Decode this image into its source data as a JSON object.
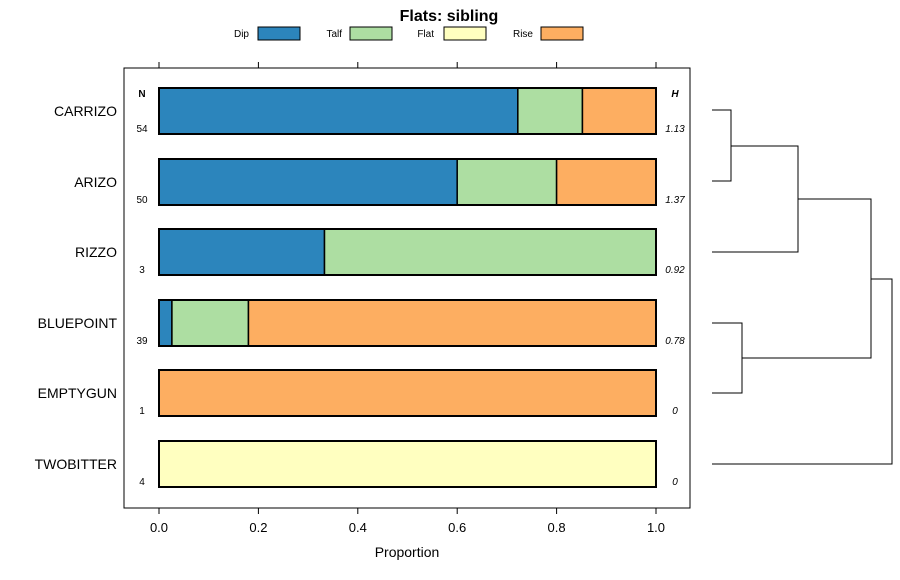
{
  "chart_data": {
    "type": "bar",
    "orientation": "horizontal",
    "stacked": true,
    "title": "Flats: sibling",
    "xlabel": "Proportion",
    "ylabel": "",
    "xlim": [
      0,
      1
    ],
    "x_ticks": [
      0,
      0.2,
      0.4,
      0.6,
      0.8,
      1
    ],
    "x_tick_labels": [
      "0.0",
      "0.2",
      "0.4",
      "0.6",
      "0.8",
      "1.0"
    ],
    "legend_position": "top",
    "categories": [
      "CARRIZO",
      "ARIZO",
      "RIZZO",
      "BLUEPOINT",
      "EMPTYGUN",
      "TWOBITTER"
    ],
    "series": [
      {
        "name": "Dip",
        "color": "#2c85bc",
        "values": [
          0.722,
          0.6,
          0.333,
          0.026,
          0,
          0
        ]
      },
      {
        "name": "Talf",
        "color": "#addea2",
        "values": [
          0.13,
          0.2,
          0.667,
          0.154,
          0,
          0
        ]
      },
      {
        "name": "Flat",
        "color": "#ffffc0",
        "values": [
          0,
          0,
          0,
          0,
          0,
          1
        ]
      },
      {
        "name": "Rise",
        "color": "#fdae61",
        "values": [
          0.148,
          0.2,
          0,
          0.82,
          1,
          0
        ]
      }
    ],
    "n_header": "N",
    "n_values": [
      "54",
      "50",
      "3",
      "39",
      "1",
      "4"
    ],
    "h_header": "H",
    "h_values": [
      "1.13",
      "1.37",
      "0.92",
      "0.78",
      "0",
      "0"
    ],
    "dendrogram": {
      "description": "hierarchical clustering of rows",
      "merges": [
        {
          "left": "CARRIZO",
          "right": "ARIZO",
          "height": 1
        },
        {
          "left": "BLUEPOINT",
          "right": "EMPTYGUN",
          "height": 1.5
        },
        {
          "left": "CARRIZO+ARIZO",
          "right": "RIZZO",
          "height": 4
        },
        {
          "left": "CARRIZO+ARIZO+RIZZO",
          "right": "BLUEPOINT+EMPTYGUN",
          "height": 7
        },
        {
          "left": "CARRIZO+ARIZO+RIZZO+BLUEPOINT+EMPTYGUN",
          "right": "TWOBITTER",
          "height": 8
        }
      ]
    }
  }
}
